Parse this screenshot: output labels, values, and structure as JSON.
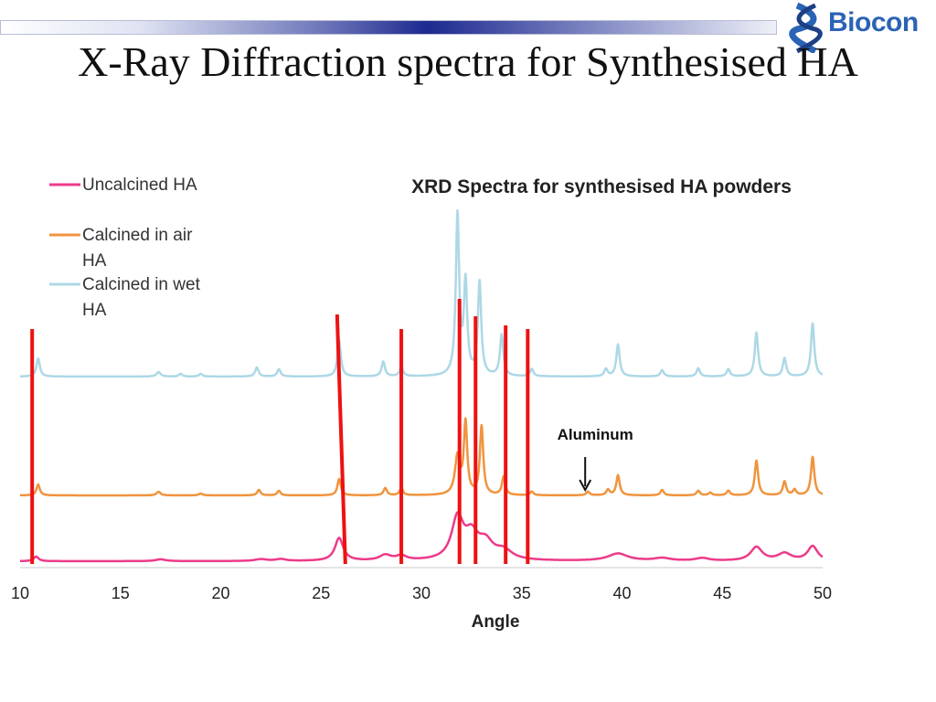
{
  "slide": {
    "title": "X-Ray Diffraction spectra for Synthesised HA",
    "logo_text": "Biocon",
    "logo_icon": "dna-helix-icon"
  },
  "chart_data": {
    "type": "line",
    "title": "XRD Spectra for synthesised HA powders",
    "xlabel": "Angle",
    "ylabel": "",
    "xlim": [
      10,
      50
    ],
    "xticks": [
      10,
      15,
      20,
      25,
      30,
      35,
      40,
      45,
      50
    ],
    "y_axis_shown": false,
    "grid": false,
    "legend": {
      "placement": "top-left",
      "entries": [
        {
          "series": "uncalcined",
          "lines": [
            "Uncalcined HA"
          ]
        },
        {
          "series": "air",
          "lines": [
            "Calcined in air",
            "HA"
          ]
        },
        {
          "series": "wet",
          "lines": [
            "Calcined in wet",
            "HA"
          ]
        }
      ]
    },
    "series": [
      {
        "name": "Uncalcined HA",
        "key": "uncalcined",
        "color": "#ec3b8a",
        "baseline": 0,
        "peaks": [
          [
            10.8,
            5,
            0.15
          ],
          [
            17.0,
            2,
            0.3
          ],
          [
            22.0,
            2,
            0.35
          ],
          [
            23.0,
            2,
            0.3
          ],
          [
            25.9,
            25,
            0.25
          ],
          [
            28.2,
            6,
            0.35
          ],
          [
            29.0,
            5,
            0.3
          ],
          [
            31.8,
            45,
            0.35
          ],
          [
            32.5,
            25,
            0.4
          ],
          [
            33.2,
            18,
            0.45
          ],
          [
            34.1,
            10,
            0.5
          ],
          [
            39.8,
            8,
            0.6
          ],
          [
            42.0,
            3,
            0.5
          ],
          [
            44.0,
            3,
            0.4
          ],
          [
            46.7,
            15,
            0.35
          ],
          [
            48.1,
            8,
            0.4
          ],
          [
            49.5,
            16,
            0.3
          ]
        ]
      },
      {
        "name": "Calcined in air HA",
        "key": "air",
        "color": "#f0943e",
        "baseline": 72,
        "peaks": [
          [
            10.9,
            12,
            0.1
          ],
          [
            16.9,
            4,
            0.12
          ],
          [
            19.0,
            2,
            0.12
          ],
          [
            21.9,
            6,
            0.1
          ],
          [
            22.9,
            5,
            0.1
          ],
          [
            25.9,
            18,
            0.1
          ],
          [
            28.2,
            8,
            0.1
          ],
          [
            29.0,
            8,
            0.1
          ],
          [
            31.8,
            42,
            0.15
          ],
          [
            32.2,
            78,
            0.1
          ],
          [
            33.0,
            75,
            0.1
          ],
          [
            34.1,
            20,
            0.1
          ],
          [
            35.5,
            4,
            0.1
          ],
          [
            38.3,
            4,
            0.1
          ],
          [
            39.3,
            6,
            0.1
          ],
          [
            39.8,
            22,
            0.1
          ],
          [
            42.0,
            6,
            0.1
          ],
          [
            43.8,
            5,
            0.1
          ],
          [
            44.4,
            3,
            0.1
          ],
          [
            45.3,
            5,
            0.1
          ],
          [
            46.7,
            38,
            0.1
          ],
          [
            48.1,
            15,
            0.1
          ],
          [
            48.6,
            6,
            0.1
          ],
          [
            49.5,
            42,
            0.1
          ]
        ]
      },
      {
        "name": "Calcined in wet HA",
        "key": "wet",
        "color": "#add8e6",
        "baseline": 202,
        "peaks": [
          [
            10.9,
            20,
            0.1
          ],
          [
            16.9,
            5,
            0.12
          ],
          [
            18.0,
            3,
            0.1
          ],
          [
            19.0,
            3,
            0.1
          ],
          [
            21.8,
            10,
            0.1
          ],
          [
            22.9,
            8,
            0.1
          ],
          [
            25.9,
            40,
            0.1
          ],
          [
            28.1,
            16,
            0.1
          ],
          [
            29.0,
            11,
            0.1
          ],
          [
            31.8,
            175,
            0.1
          ],
          [
            32.2,
            100,
            0.1
          ],
          [
            32.9,
            102,
            0.1
          ],
          [
            34.0,
            45,
            0.1
          ],
          [
            35.5,
            8,
            0.1
          ],
          [
            39.2,
            8,
            0.1
          ],
          [
            39.8,
            35,
            0.1
          ],
          [
            42.0,
            7,
            0.1
          ],
          [
            43.8,
            9,
            0.1
          ],
          [
            45.3,
            8,
            0.1
          ],
          [
            46.7,
            48,
            0.1
          ],
          [
            48.1,
            20,
            0.1
          ],
          [
            49.5,
            58,
            0.1
          ]
        ]
      }
    ],
    "markers": [
      10.6,
      25.8,
      29.0,
      31.9,
      32.7,
      34.2,
      35.3
    ],
    "annotation": {
      "text": "Aluminum",
      "x": 38.3,
      "arrow": "down"
    }
  }
}
